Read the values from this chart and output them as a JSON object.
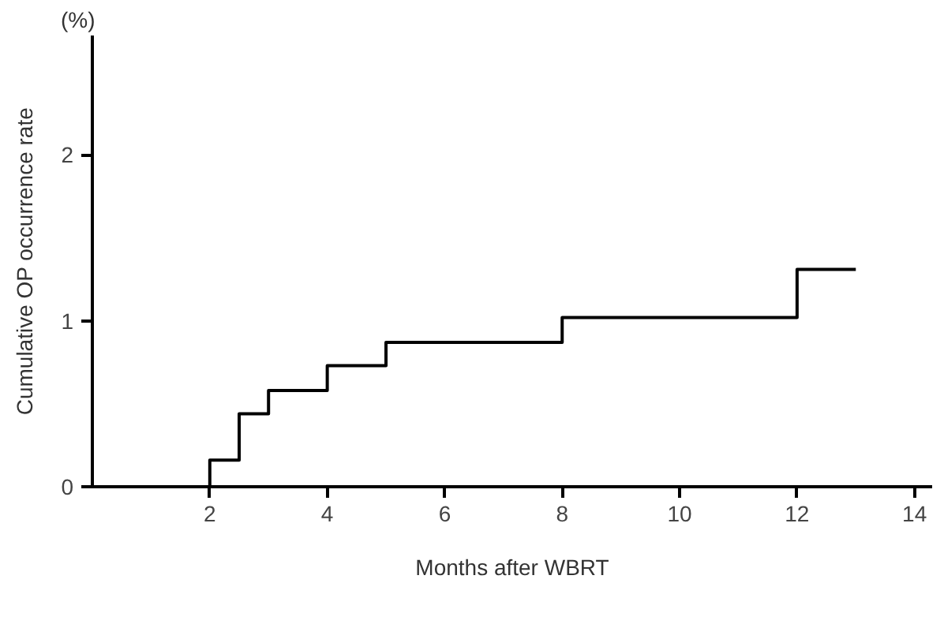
{
  "chart_data": {
    "type": "step",
    "xlabel": "Months after WBRT",
    "ylabel": "Cumulative OP occurrence rate",
    "annotations": [
      "(%)"
    ],
    "x": [
      2,
      2,
      2.5,
      3,
      4,
      5,
      8,
      12,
      13
    ],
    "series": [
      {
        "color": "#000000",
        "values": [
          0,
          0.16,
          0.44,
          0.58,
          0.73,
          0.87,
          1.02,
          1.31,
          1.31
        ]
      }
    ],
    "xlim": [
      0,
      14.3
    ],
    "ylim": [
      0,
      2.72
    ],
    "xticks": [
      2,
      4,
      6,
      8,
      10,
      12,
      14
    ],
    "yticks": [
      0,
      1,
      2
    ],
    "grid": false,
    "marker": "none",
    "line_style": "solid"
  }
}
